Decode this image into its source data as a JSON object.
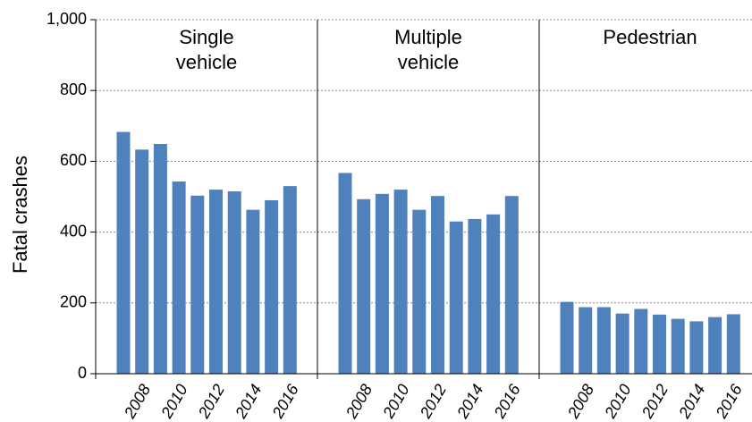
{
  "chart_data": {
    "type": "bar",
    "ylabel": "Fatal crashes",
    "color": "#4f81bd",
    "ylim": [
      0,
      1000
    ],
    "yticks": [
      0,
      200,
      400,
      600,
      800,
      {
        "value": 1000,
        "label": "1,000"
      }
    ],
    "grid": true,
    "categories": [
      null,
      "2008",
      null,
      "2010",
      null,
      "2012",
      null,
      "2014",
      null,
      "2016"
    ],
    "panels": [
      {
        "title": "Single vehicle",
        "values": [
          683,
          633,
          649,
          543,
          503,
          520,
          515,
          463,
          490,
          530
        ]
      },
      {
        "title": "Multiple vehicle",
        "values": [
          567,
          493,
          508,
          520,
          463,
          502,
          430,
          437,
          450,
          502
        ]
      },
      {
        "title": "Pedestrian",
        "values": [
          203,
          188,
          188,
          170,
          183,
          167,
          155,
          148,
          160,
          168
        ]
      }
    ]
  }
}
